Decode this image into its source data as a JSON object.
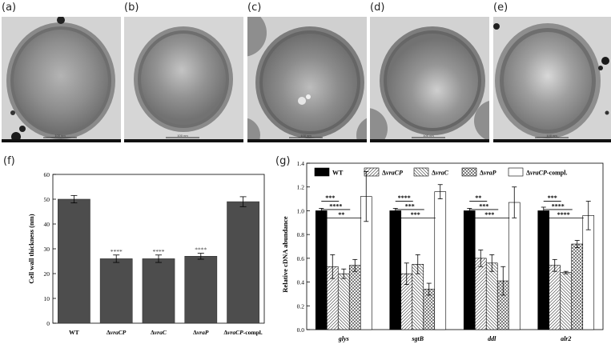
{
  "panels": {
    "tem": [
      {
        "label": "(a)",
        "scalebar": "100 nm"
      },
      {
        "label": "(b)",
        "scalebar": "100 nm"
      },
      {
        "label": "(c)",
        "scalebar": "100 nm"
      },
      {
        "label": "(d)",
        "scalebar": "100 nm"
      },
      {
        "label": "(e)",
        "scalebar": "100 nm"
      }
    ],
    "f_label": "(f)",
    "g_label": "(g)"
  },
  "colors": {
    "bar_dark": "#4d4d4d",
    "wt": "#000000",
    "complement": "#ffffff"
  },
  "chart_data": [
    {
      "type": "bar",
      "title": "",
      "xlabel": "",
      "ylabel": "Cell wall thickness (nm)",
      "ylim": [
        0,
        60
      ],
      "yticks": [
        "0",
        "10",
        "20",
        "30",
        "40",
        "50",
        "60"
      ],
      "categories": [
        "WT",
        "ΔvraCP",
        "ΔvraC",
        "ΔvraP",
        "ΔvraCP-compl."
      ],
      "values": [
        50,
        26,
        26,
        27,
        49
      ],
      "errors": [
        1.5,
        1.5,
        1.5,
        1.2,
        2
      ],
      "annotations": [
        "",
        "****",
        "****",
        "****",
        ""
      ],
      "grid": false
    },
    {
      "type": "bar",
      "title": "",
      "xlabel": "",
      "ylabel": "Relative cDNA abundance",
      "ylim": [
        0,
        1.4
      ],
      "yticks": [
        "0.0",
        "0.2",
        "0.4",
        "0.6",
        "0.8",
        "1.0",
        "1.2",
        "1.4"
      ],
      "categories": [
        "glys",
        "sgtB",
        "ddl",
        "alr2"
      ],
      "legend_position": "top",
      "series": [
        {
          "name": "WT",
          "values": [
            1.0,
            1.0,
            1.0,
            1.0
          ],
          "errors": [
            0.02,
            0.02,
            0.02,
            0.03
          ]
        },
        {
          "name": "ΔvraCP",
          "values": [
            0.53,
            0.47,
            0.6,
            0.54
          ],
          "errors": [
            0.1,
            0.09,
            0.07,
            0.05
          ]
        },
        {
          "name": "ΔvraC",
          "values": [
            0.47,
            0.55,
            0.56,
            0.48
          ],
          "errors": [
            0.04,
            0.08,
            0.07,
            0.01
          ]
        },
        {
          "name": "ΔvraP",
          "values": [
            0.54,
            0.34,
            0.41,
            0.72
          ],
          "errors": [
            0.05,
            0.05,
            0.12,
            0.03
          ]
        },
        {
          "name": "ΔvraCP-compl.",
          "values": [
            1.12,
            1.16,
            1.07,
            0.96
          ],
          "errors": [
            0.21,
            0.06,
            0.13,
            0.12
          ]
        }
      ],
      "significance": [
        [
          "***",
          "****",
          "**"
        ],
        [
          "****",
          "***",
          "***"
        ],
        [
          "**",
          "***",
          "***"
        ],
        [
          "***",
          "****",
          "****"
        ]
      ],
      "grid": false
    }
  ]
}
